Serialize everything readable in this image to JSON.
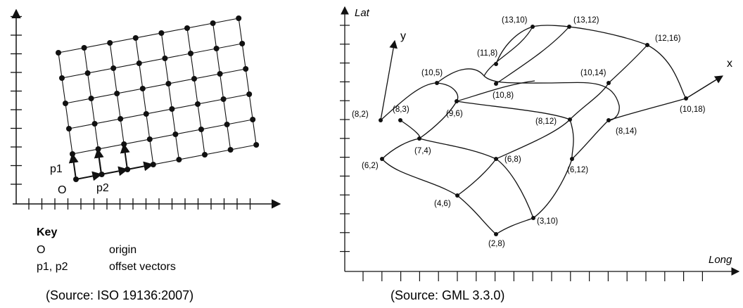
{
  "left_panel": {
    "labels": {
      "origin": "O",
      "p1": "p1",
      "p2": "p2"
    },
    "key": {
      "title": "Key",
      "rows": [
        {
          "term": "O",
          "desc": "origin"
        },
        {
          "term": "p1, p2",
          "desc": "offset vectors"
        }
      ]
    },
    "source": "(Source: ISO 19136:2007)"
  },
  "right_panel": {
    "axes": {
      "x": "Long",
      "y": "Lat"
    },
    "grid_axes": {
      "x": "x",
      "y": "y"
    },
    "points": [
      {
        "id": "p_13_10",
        "label": "(13,10)"
      },
      {
        "id": "p_13_12",
        "label": "(13,12)"
      },
      {
        "id": "p_12_16",
        "label": "(12,16)"
      },
      {
        "id": "p_11_8",
        "label": "(11,8)"
      },
      {
        "id": "p_10_5",
        "label": "(10,5)"
      },
      {
        "id": "p_10_14",
        "label": "(10,14)"
      },
      {
        "id": "p_10_8",
        "label": "(10,8)"
      },
      {
        "id": "p_10_18",
        "label": "(10,18)"
      },
      {
        "id": "p_9_6",
        "label": "(9,6)"
      },
      {
        "id": "p_8_2",
        "label": "(8,2)"
      },
      {
        "id": "p_8_3",
        "label": "(8,3)"
      },
      {
        "id": "p_8_12",
        "label": "(8,12)"
      },
      {
        "id": "p_8_14",
        "label": "(8,14)"
      },
      {
        "id": "p_7_4",
        "label": "(7,4)"
      },
      {
        "id": "p_6_2",
        "label": "(6,2)"
      },
      {
        "id": "p_6_8",
        "label": "(6,8)"
      },
      {
        "id": "p_6_12",
        "label": "(6,12)"
      },
      {
        "id": "p_4_6",
        "label": "(4,6)"
      },
      {
        "id": "p_3_10",
        "label": "(3,10)"
      },
      {
        "id": "p_2_8",
        "label": "(2,8)"
      }
    ],
    "source": "(Source: GML 3.3.0)"
  }
}
